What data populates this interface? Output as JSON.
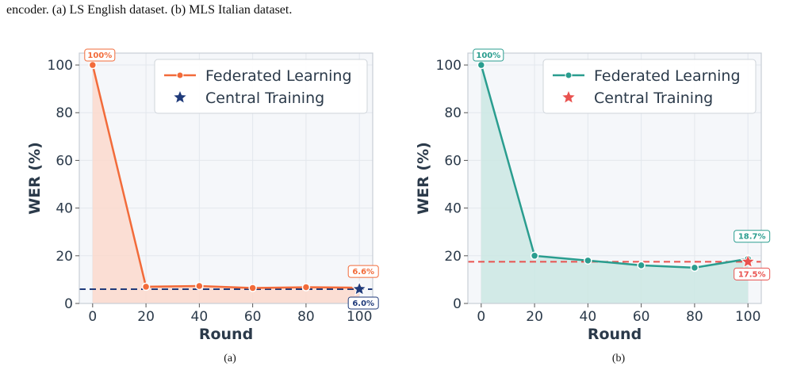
{
  "caption": "encoder. (a) LS English dataset. (b) MLS Italian dataset.",
  "chart_data": [
    {
      "type": "line",
      "panel_label": "(a)",
      "xlabel": "Round",
      "ylabel": "WER (%)",
      "xlim": [
        -5,
        105
      ],
      "ylim": [
        0,
        105
      ],
      "xticks": [
        0,
        20,
        40,
        60,
        80,
        100
      ],
      "yticks": [
        0,
        20,
        40,
        60,
        80,
        100
      ],
      "grid": true,
      "legend_position": "top-right",
      "series": [
        {
          "name": "Federated Learning",
          "color": "#f26b3a",
          "fill": "#fbd9cc",
          "x": [
            0,
            20,
            40,
            60,
            80,
            100
          ],
          "y": [
            100,
            7.0,
            7.3,
            6.5,
            6.8,
            6.6
          ]
        }
      ],
      "reference": {
        "name": "Central Training",
        "color": "#1f3a7a",
        "x": 100,
        "y": 6.0,
        "marker": "star",
        "dashed_line": true
      },
      "annotations": [
        {
          "text": "100%",
          "x": 0,
          "y": 100,
          "color": "#f26b3a"
        },
        {
          "text": "6.6%",
          "x": 100,
          "y": 6.6,
          "color": "#f26b3a"
        },
        {
          "text": "6.0%",
          "x": 100,
          "y": 6.0,
          "color": "#1f3a7a"
        }
      ]
    },
    {
      "type": "line",
      "panel_label": "(b)",
      "xlabel": "Round",
      "ylabel": "WER (%)",
      "xlim": [
        -5,
        105
      ],
      "ylim": [
        0,
        105
      ],
      "xticks": [
        0,
        20,
        40,
        60,
        80,
        100
      ],
      "yticks": [
        0,
        20,
        40,
        60,
        80,
        100
      ],
      "grid": true,
      "legend_position": "top-right",
      "series": [
        {
          "name": "Federated Learning",
          "color": "#2a9d8f",
          "fill": "#cbe7e3",
          "x": [
            0,
            20,
            40,
            60,
            80,
            100
          ],
          "y": [
            100,
            20.0,
            18.0,
            16.0,
            15.0,
            18.7
          ]
        }
      ],
      "reference": {
        "name": "Central Training",
        "color": "#e9524f",
        "x": 100,
        "y": 17.5,
        "marker": "star",
        "dashed_line": true
      },
      "annotations": [
        {
          "text": "100%",
          "x": 0,
          "y": 100,
          "color": "#2a9d8f"
        },
        {
          "text": "18.7%",
          "x": 100,
          "y": 18.7,
          "color": "#2a9d8f"
        },
        {
          "text": "17.5%",
          "x": 100,
          "y": 17.5,
          "color": "#e9524f"
        }
      ]
    }
  ]
}
